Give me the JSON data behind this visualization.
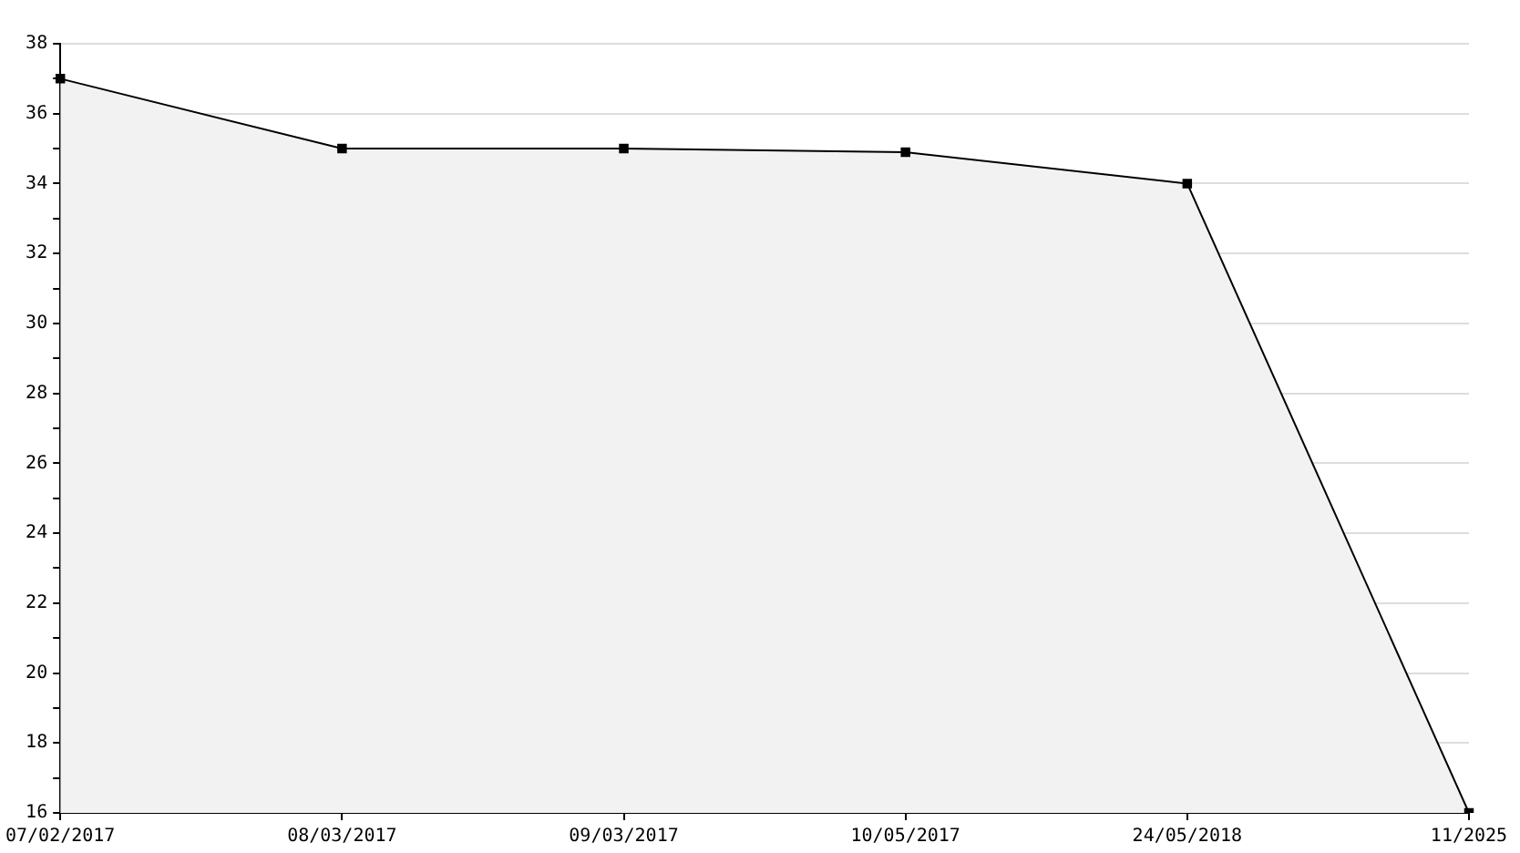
{
  "chart_data": {
    "type": "area",
    "categories": [
      "07/02/2017",
      "08/03/2017",
      "09/03/2017",
      "10/05/2017",
      "24/05/2018",
      "11/2025"
    ],
    "series": [
      {
        "color": "#000000",
        "values": [
          37,
          35,
          35,
          34.9,
          34,
          16
        ]
      }
    ],
    "ylim": [
      16,
      38
    ],
    "yticks": [
      16,
      {
        "value": 17,
        "label": null
      },
      18,
      {
        "value": 19,
        "label": null
      },
      20,
      {
        "value": 21,
        "label": null
      },
      22,
      {
        "value": 23,
        "label": null
      },
      24,
      {
        "value": 25,
        "label": null
      },
      26,
      {
        "value": 27,
        "label": null
      },
      28,
      {
        "value": 29,
        "label": null
      },
      30,
      {
        "value": 31,
        "label": null
      },
      32,
      {
        "value": 33,
        "label": null
      },
      34,
      {
        "value": 35,
        "label": null
      },
      36,
      {
        "value": 37,
        "label": null
      },
      38
    ],
    "grid": "y",
    "marker": "square",
    "legend": false
  }
}
